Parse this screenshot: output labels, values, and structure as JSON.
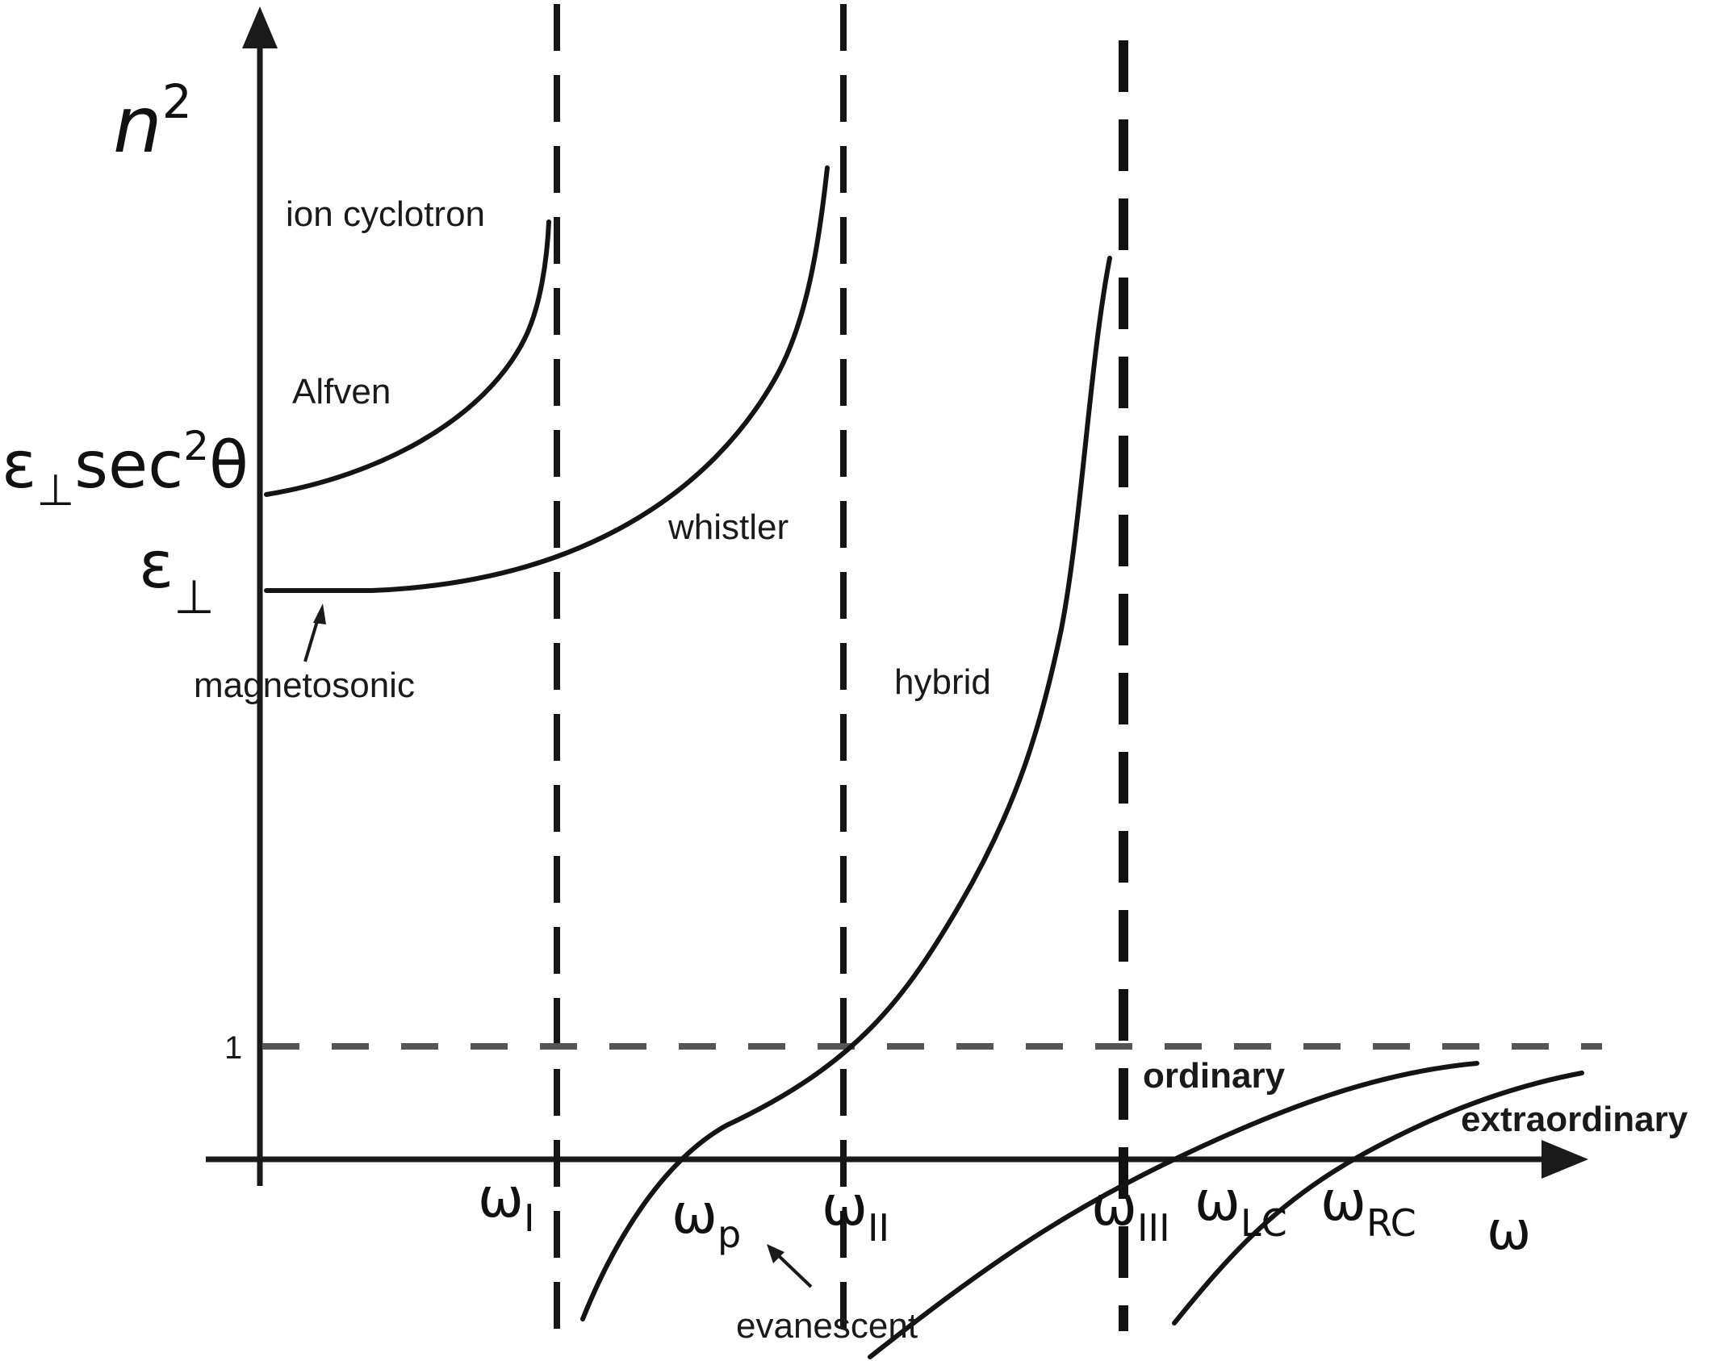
{
  "axes": {
    "y_label_base": "n",
    "y_label_sup": "2",
    "x_label": "ω"
  },
  "y_ticks": {
    "eps_sec": {
      "base": "ε",
      "sub": "⊥",
      "mid": "sec",
      "sup": "2",
      "tail": "θ"
    },
    "eps": {
      "base": "ε",
      "sub": "⊥"
    },
    "one": "1"
  },
  "x_ticks": [
    {
      "base": "ω",
      "sub": "I"
    },
    {
      "base": "ω",
      "sub": "p"
    },
    {
      "base": "ω",
      "sub": "II"
    },
    {
      "base": "ω",
      "sub": "III"
    },
    {
      "base": "ω",
      "sub": "LC"
    },
    {
      "base": "ω",
      "sub": "RC"
    }
  ],
  "curve_labels": {
    "ion_cyclotron": "ion cyclotron",
    "alfven": "Alfven",
    "whistler": "whistler",
    "magnetosonic": "magnetosonic",
    "hybrid": "hybrid",
    "ordinary": "ordinary",
    "extraordinary": "extraordinary",
    "evanescent": "evanescent"
  },
  "colors": {
    "ink": "#141414",
    "dashed_reference": "#555555"
  }
}
